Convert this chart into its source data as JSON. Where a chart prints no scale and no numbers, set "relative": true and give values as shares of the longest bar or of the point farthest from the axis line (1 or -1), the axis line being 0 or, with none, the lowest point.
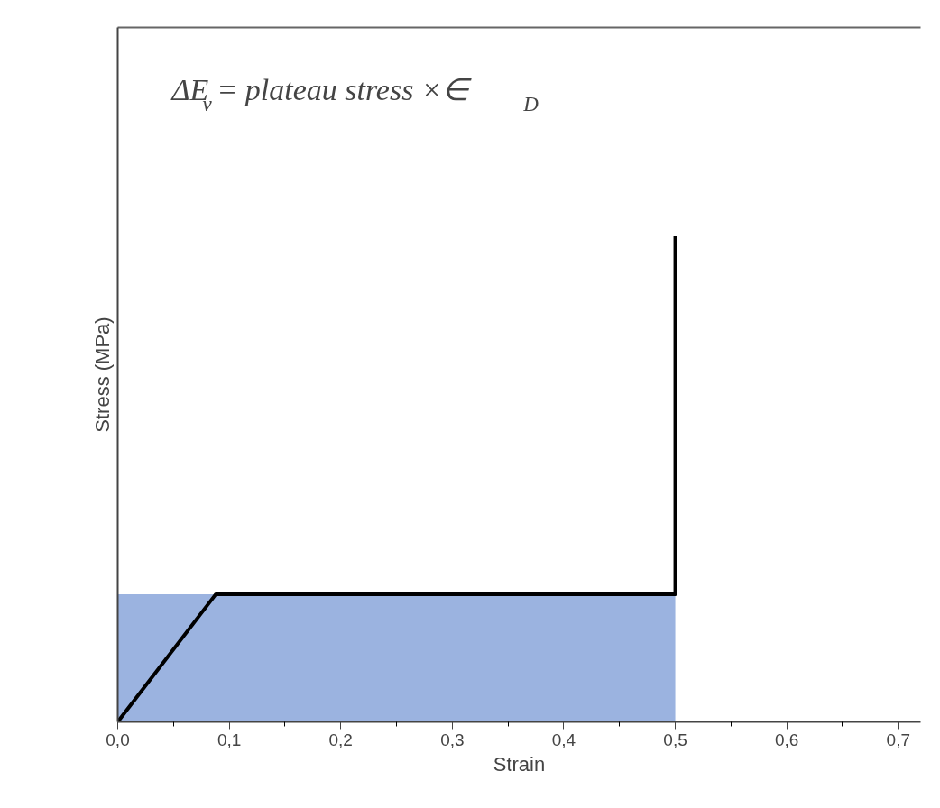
{
  "chart_data": {
    "type": "line",
    "relative": true,
    "xlabel": "Strain",
    "ylabel": "Stress (MPa)",
    "annotations": [
      "ΔE$_{v}$ = plateau stress ×∈$_{D}$"
    ],
    "xlim": [
      0,
      0.72
    ],
    "xticks": [
      {
        "value": 0,
        "label": "0,0"
      },
      {
        "value": 0.1,
        "label": "0,1"
      },
      {
        "value": 0.2,
        "label": "0,2"
      },
      {
        "value": 0.3,
        "label": "0,3"
      },
      {
        "value": 0.4,
        "label": "0,4"
      },
      {
        "value": 0.5,
        "label": "0,5"
      },
      {
        "value": 0.6,
        "label": "0,6"
      },
      {
        "value": 0.7,
        "label": "0,7"
      }
    ],
    "tick_labels": "x",
    "grid": false,
    "marker": "none",
    "line_style": "solid",
    "series": [
      {
        "type": "area",
        "color": "#9bb3e0",
        "x": [
          0,
          0.5
        ],
        "values": [
          0.263,
          0.263
        ]
      },
      {
        "color": "#000000",
        "x": [
          0,
          0.088,
          0.5,
          0.5
        ],
        "values": [
          0,
          0.263,
          0.263,
          1
        ]
      }
    ]
  }
}
